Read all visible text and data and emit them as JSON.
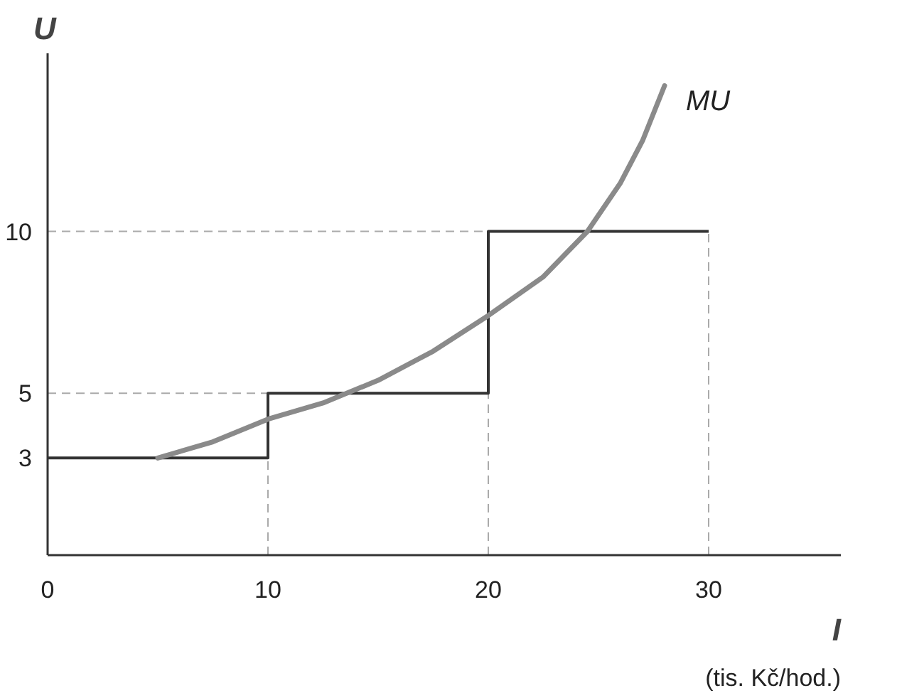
{
  "chart_data": {
    "type": "line",
    "xlabel": "I",
    "ylabel": "U",
    "annotations": [
      "(tis. Kč/hod.)"
    ],
    "xlim": [
      0,
      36
    ],
    "ylim": [
      0,
      15.5
    ],
    "xticks": [
      0,
      10,
      20,
      30
    ],
    "yticks": [
      3,
      5,
      10
    ],
    "grid": false,
    "series": [
      {
        "type": "step",
        "color": "#333333",
        "x": [
          0,
          10,
          20,
          30
        ],
        "values": [
          3,
          5,
          10,
          10
        ]
      },
      {
        "name": "MU",
        "color": "#8a8a8a",
        "x": [
          5,
          7.5,
          10,
          12.5,
          15,
          17.5,
          20,
          22.5,
          24.5,
          26,
          27,
          28
        ],
        "values": [
          3,
          3.5,
          4.2,
          4.7,
          5.4,
          6.3,
          7.4,
          8.6,
          10,
          11.5,
          12.8,
          14.5
        ]
      }
    ],
    "ref_lines": [
      {
        "axis": "y",
        "value": 10,
        "color": "#aaaaaa",
        "line_style": "dashed"
      },
      {
        "axis": "y",
        "value": 5,
        "color": "#aaaaaa",
        "line_style": "dashed"
      },
      {
        "axis": "x",
        "value": 10,
        "color": "#aaaaaa",
        "line_style": "dashed"
      },
      {
        "axis": "x",
        "value": 20,
        "color": "#aaaaaa",
        "line_style": "dashed"
      },
      {
        "axis": "x",
        "value": 30,
        "color": "#aaaaaa",
        "line_style": "dashed"
      }
    ]
  }
}
